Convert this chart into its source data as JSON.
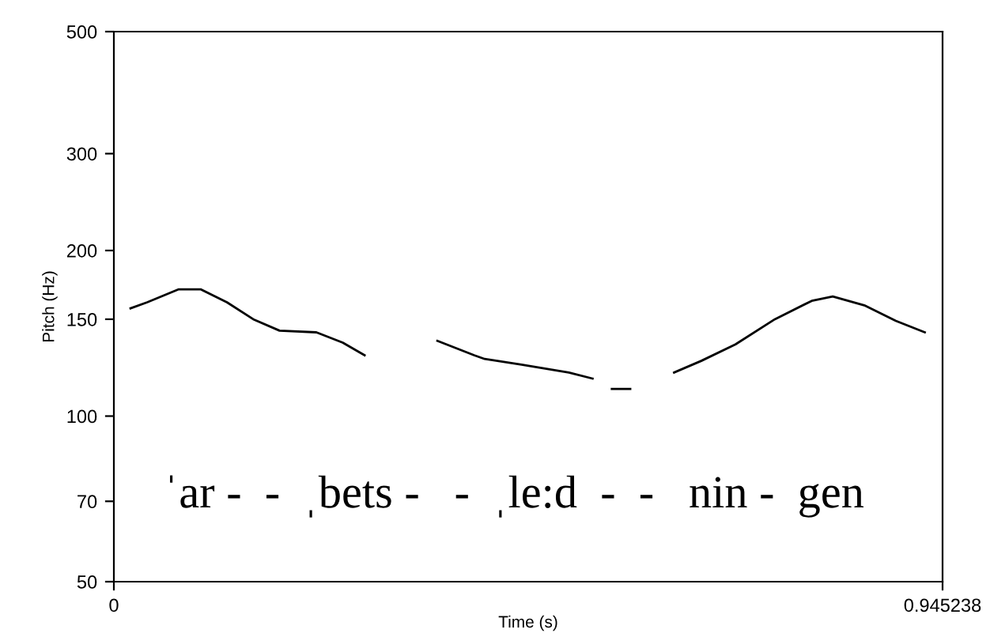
{
  "chart_data": {
    "type": "line",
    "xlabel": "Time (s)",
    "ylabel": "Pitch (Hz)",
    "log": "y",
    "xlim": [
      0,
      0.945238
    ],
    "xticks": [
      0,
      0.945238
    ],
    "ylim": [
      50,
      500
    ],
    "yticks": [
      50,
      70,
      100,
      150,
      200,
      300,
      500
    ],
    "grid": false,
    "marker": "none",
    "line_style": "solid",
    "series": [
      {
        "color": "#000000",
        "x": [
          0.019,
          0.038,
          0.074,
          0.099,
          0.129,
          0.159,
          0.189,
          0.231,
          0.261,
          0.286,
          0.33,
          0.369,
          0.411,
          0.423,
          0.465,
          0.519,
          0.546,
          0.557,
          0.568,
          0.589,
          0.61,
          0.639,
          0.67,
          0.709,
          0.754,
          0.796,
          0.82,
          0.856,
          0.892,
          0.925
        ],
        "values": [
          157,
          161,
          170,
          170,
          161,
          150,
          143,
          142,
          136,
          129,
          null,
          137,
          129,
          127,
          124,
          120,
          117,
          null,
          112,
          112,
          null,
          120,
          126,
          135,
          150,
          162,
          165,
          159,
          149,
          142
        ]
      }
    ],
    "annotations": [
      "ˈar -  -  ˌbets -   -  ˌle:d  -  -   nin -  gen"
    ]
  }
}
